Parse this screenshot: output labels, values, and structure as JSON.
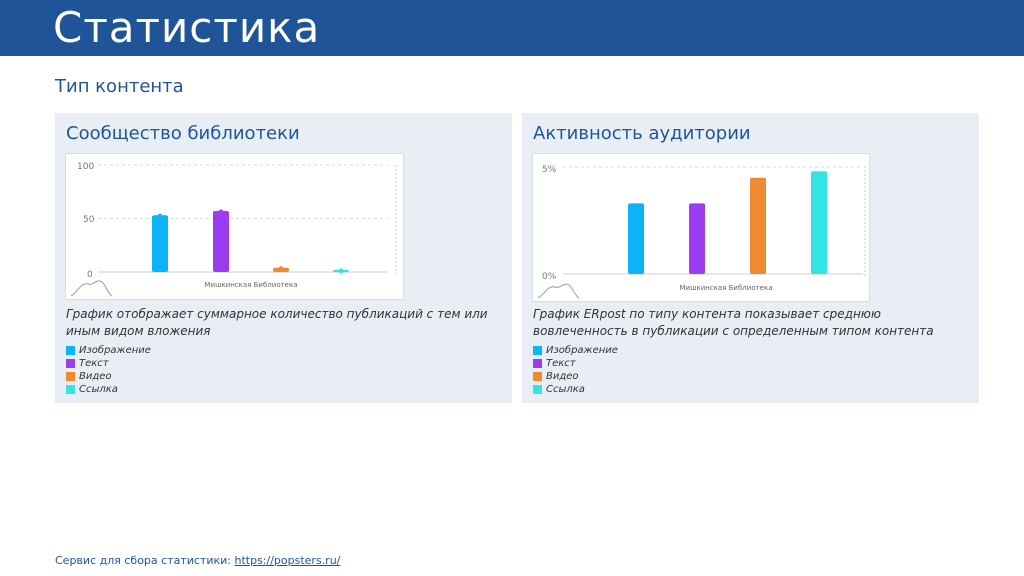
{
  "header": {
    "title": "Статистика"
  },
  "section": {
    "title": "Тип контента"
  },
  "legend_items": [
    {
      "label": "Изображение",
      "color": "#0ab4f5"
    },
    {
      "label": "Текст",
      "color": "#9b3cf0"
    },
    {
      "label": "Видео",
      "color": "#f08a32"
    },
    {
      "label": "Ссылка",
      "color": "#34e4e4"
    }
  ],
  "panels": [
    {
      "title": "Сообщество библиотеки",
      "description": "График отображает суммарное количество публикаций с тем или иным видом вложения"
    },
    {
      "title": "Активность аудитории",
      "description": "График ERpost по типу контента показывает среднюю вовлеченность в публикации с определенным типом контента"
    }
  ],
  "chart_data": [
    {
      "type": "bar",
      "categories": [
        "Изображение",
        "Текст",
        "Видео",
        "Ссылка"
      ],
      "values": [
        53,
        57,
        4,
        2
      ],
      "colors": [
        "#0ab4f5",
        "#9b3cf0",
        "#f08a32",
        "#34e4e4"
      ],
      "xlabel": "Мишкинская Библиотека",
      "ylim": [
        0,
        100
      ],
      "yticks": [
        "100",
        "50",
        "0"
      ],
      "grid": true
    },
    {
      "type": "bar",
      "categories": [
        "Изображение",
        "Текст",
        "Видео",
        "Ссылка"
      ],
      "values": [
        3.3,
        3.3,
        4.5,
        4.8
      ],
      "colors": [
        "#0ab4f5",
        "#9b3cf0",
        "#f08a32",
        "#34e4e4"
      ],
      "xlabel": "Мишкинская Библиотека",
      "ylim": [
        0,
        5
      ],
      "yticks": [
        "5%",
        "0%"
      ],
      "grid": true
    }
  ],
  "footer": {
    "text": "Сервис для сбора статистики:",
    "link": "https://popsters.ru/"
  }
}
